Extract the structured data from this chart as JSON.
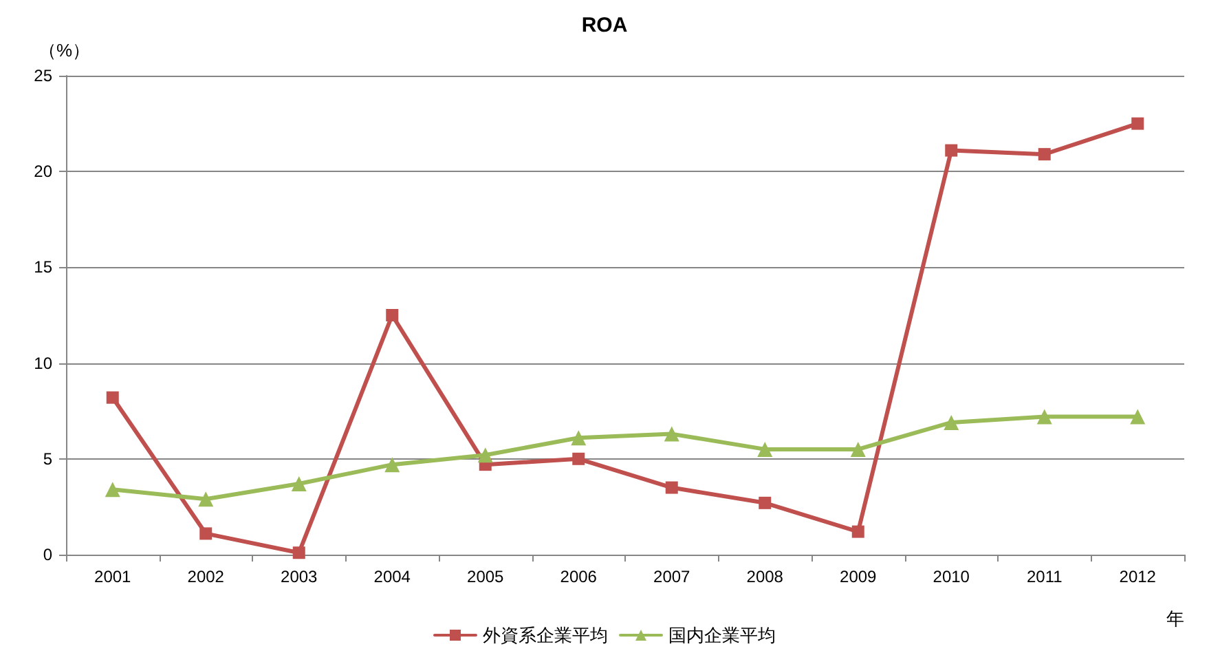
{
  "chart_data": {
    "type": "line",
    "title": "ROA",
    "ylabel": "（%）",
    "xlabel": "年",
    "categories": [
      "2001",
      "2002",
      "2003",
      "2004",
      "2005",
      "2006",
      "2007",
      "2008",
      "2009",
      "2010",
      "2011",
      "2012"
    ],
    "series": [
      {
        "name": "外資系企業平均",
        "color": "#c0504d",
        "marker": "square",
        "values": [
          8.2,
          1.1,
          0.1,
          12.5,
          4.7,
          5.0,
          3.5,
          2.7,
          1.2,
          21.1,
          20.9,
          22.5
        ]
      },
      {
        "name": "国内企業平均",
        "color": "#9bbb59",
        "marker": "triangle",
        "values": [
          3.4,
          2.9,
          3.7,
          4.7,
          5.2,
          6.1,
          6.3,
          5.5,
          5.5,
          6.9,
          7.2,
          7.2
        ]
      }
    ],
    "ylim": [
      0,
      25
    ],
    "yticks": [
      0,
      5,
      10,
      15,
      20,
      25
    ],
    "grid": "y",
    "legend": "bottom",
    "line_style": "solid"
  }
}
